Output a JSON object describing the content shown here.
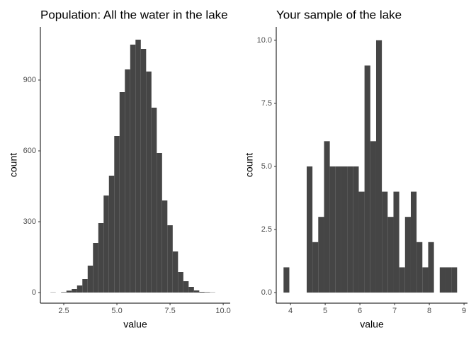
{
  "chart_data": [
    {
      "type": "histogram",
      "title": "Population: All the water in the lake",
      "x_label": "value",
      "y_label": "count",
      "color": "#454545",
      "bins": [
        1.875,
        2.125,
        2.375,
        2.625,
        2.875,
        3.125,
        3.375,
        3.625,
        3.875,
        4.125,
        4.375,
        4.625,
        4.875,
        5.125,
        5.375,
        5.625,
        5.875,
        6.125,
        6.375,
        6.625,
        6.875,
        7.125,
        7.375,
        7.625,
        7.875,
        8.125,
        8.375,
        8.625,
        8.875,
        9.125,
        9.375,
        9.625
      ],
      "values": [
        1,
        0,
        2,
        8,
        15,
        30,
        57,
        114,
        210,
        294,
        411,
        495,
        663,
        849,
        945,
        1050,
        1071,
        1032,
        936,
        783,
        591,
        390,
        285,
        174,
        87,
        48,
        24,
        9,
        3,
        2,
        1
      ],
      "xlim": [
        1.4,
        10.33
      ],
      "xticks": [
        {
          "value": 2.5,
          "label": "2.5"
        },
        {
          "value": 5,
          "label": "5.0"
        },
        {
          "value": 7.5,
          "label": "7.5"
        },
        {
          "value": 10,
          "label": "10.0"
        }
      ],
      "ylim": [
        -45,
        1125
      ],
      "yticks": [
        0,
        300,
        600,
        900
      ]
    },
    {
      "type": "histogram",
      "title": "Your sample of the lake",
      "x_label": "value",
      "y_label": "count",
      "color": "#454545",
      "bins": [
        3.8,
        3.967,
        4.133,
        4.3,
        4.467,
        4.633,
        4.8,
        4.967,
        5.133,
        5.3,
        5.467,
        5.633,
        5.8,
        5.967,
        6.133,
        6.3,
        6.467,
        6.633,
        6.8,
        6.967,
        7.133,
        7.3,
        7.467,
        7.633,
        7.8,
        7.967,
        8.133,
        8.3,
        8.467,
        8.633,
        8.8
      ],
      "values": [
        1,
        0,
        0,
        0,
        5,
        2,
        3,
        6,
        5,
        5,
        5,
        5,
        5,
        4,
        9,
        6,
        10,
        4,
        3,
        4,
        1,
        3,
        4,
        2,
        1,
        2,
        0,
        1,
        1,
        1
      ],
      "xlim": [
        3.59,
        9.1
      ],
      "xticks": [
        4,
        5,
        6,
        7,
        8,
        9
      ],
      "ylim": [
        -0.42,
        10.53
      ],
      "yticks": [
        {
          "value": 0,
          "label": "0.0"
        },
        {
          "value": 2.5,
          "label": "2.5"
        },
        {
          "value": 5,
          "label": "5.0"
        },
        {
          "value": 7.5,
          "label": "7.5"
        },
        {
          "value": 10,
          "label": "10.0"
        }
      ]
    }
  ]
}
